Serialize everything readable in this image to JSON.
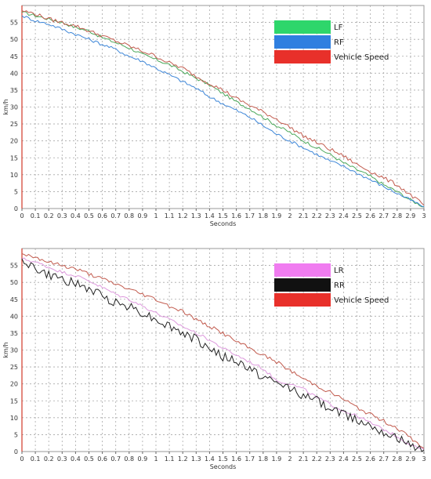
{
  "chart_data": [
    {
      "type": "line",
      "xlabel": "Seconds",
      "ylabel": "km/h",
      "xlim": [
        0,
        3.0
      ],
      "ylim": [
        0,
        60
      ],
      "x_ticks": [
        "0",
        "0.1",
        "0.2",
        "0.3",
        "0.4",
        "0.5",
        "0.6",
        "0.7",
        "0.8",
        "0.9",
        "1",
        "1.1",
        "1.2",
        "1.3",
        "1.4",
        "1.5",
        "1.6",
        "1.7",
        "1.8",
        "1.9",
        "2",
        "2.1",
        "2.2",
        "2.3",
        "2.4",
        "2.5",
        "2.6",
        "2.7",
        "2.8",
        "2.9",
        "3"
      ],
      "y_ticks": [
        "0",
        "5",
        "10",
        "15",
        "20",
        "25",
        "30",
        "35",
        "40",
        "45",
        "50",
        "55"
      ],
      "grid": true,
      "legend_position": "top-right",
      "legend": [
        {
          "name": "LF",
          "color": "#2ed66b"
        },
        {
          "name": "RF",
          "color": "#2f7fe0"
        },
        {
          "name": "Vehicle Speed",
          "color": "#e8302a"
        }
      ],
      "series": [
        {
          "name": "LF",
          "color": "#4ba85a",
          "x": [
            0,
            0.1,
            0.2,
            0.3,
            0.4,
            0.5,
            0.6,
            0.7,
            0.8,
            0.9,
            1.0,
            1.1,
            1.2,
            1.3,
            1.4,
            1.5,
            1.6,
            1.7,
            1.8,
            1.9,
            2.0,
            2.1,
            2.2,
            2.3,
            2.4,
            2.5,
            2.6,
            2.7,
            2.8,
            2.9,
            3.0
          ],
          "values": [
            58,
            57,
            56,
            55,
            53.5,
            52.5,
            50.5,
            49,
            47.5,
            45.5,
            44,
            42.5,
            40.5,
            38.5,
            36.5,
            34,
            31.5,
            29.5,
            27,
            24.5,
            22.5,
            20,
            18,
            16,
            13.5,
            11.5,
            9.5,
            7,
            5,
            2.5,
            0.5
          ]
        },
        {
          "name": "RF",
          "color": "#3d86d8",
          "x": [
            0,
            0.1,
            0.2,
            0.3,
            0.4,
            0.5,
            0.6,
            0.7,
            0.8,
            0.9,
            1.0,
            1.1,
            1.2,
            1.3,
            1.4,
            1.5,
            1.6,
            1.7,
            1.8,
            1.9,
            2.0,
            2.1,
            2.2,
            2.3,
            2.4,
            2.5,
            2.6,
            2.7,
            2.8,
            2.9,
            3.0
          ],
          "values": [
            57,
            55.5,
            54.5,
            53,
            51.5,
            50,
            48.5,
            47,
            45,
            43.5,
            41.5,
            39.5,
            37.5,
            35.5,
            33,
            31,
            29,
            27,
            24.5,
            22,
            20,
            18,
            16,
            14,
            12.5,
            10.5,
            8.5,
            6.5,
            4.5,
            2.5,
            0.5
          ]
        },
        {
          "name": "Vehicle Speed",
          "color": "#c25b4e",
          "x": [
            0,
            0.1,
            0.2,
            0.3,
            0.4,
            0.5,
            0.6,
            0.7,
            0.8,
            0.9,
            1.0,
            1.1,
            1.2,
            1.3,
            1.4,
            1.5,
            1.6,
            1.7,
            1.8,
            1.9,
            2.0,
            2.1,
            2.2,
            2.3,
            2.4,
            2.5,
            2.6,
            2.7,
            2.8,
            2.9,
            3.0
          ],
          "values": [
            58.5,
            57.5,
            56,
            55,
            54,
            52.5,
            51,
            49.5,
            48,
            46.5,
            45,
            43,
            41.5,
            39,
            37,
            35,
            32.5,
            30.5,
            28.5,
            26.5,
            24,
            21.5,
            19.5,
            17.5,
            15.5,
            13,
            11,
            9,
            7,
            4,
            1
          ]
        }
      ]
    },
    {
      "type": "line",
      "xlabel": "Seconds",
      "ylabel": "km/h",
      "xlim": [
        0,
        3.0
      ],
      "ylim": [
        0,
        60
      ],
      "x_ticks": [
        "0",
        "0.1",
        "0.2",
        "0.3",
        "0.4",
        "0.5",
        "0.6",
        "0.7",
        "0.8",
        "0.9",
        "1",
        "1.1",
        "1.2",
        "1.3",
        "1.4",
        "1.5",
        "1.6",
        "1.7",
        "1.8",
        "1.9",
        "2",
        "2.1",
        "2.2",
        "2.3",
        "2.4",
        "2.5",
        "2.6",
        "2.7",
        "2.8",
        "2.9",
        "3"
      ],
      "y_ticks": [
        "0",
        "5",
        "10",
        "15",
        "20",
        "25",
        "30",
        "35",
        "40",
        "45",
        "50",
        "55"
      ],
      "grid": true,
      "legend_position": "top-right",
      "legend": [
        {
          "name": "LR",
          "color": "#f07cf0"
        },
        {
          "name": "RR",
          "color": "#111111"
        },
        {
          "name": "Vehicle Speed",
          "color": "#e8302a"
        }
      ],
      "series": [
        {
          "name": "LR",
          "color": "#dd99dd",
          "x": [
            0,
            0.1,
            0.2,
            0.3,
            0.4,
            0.5,
            0.6,
            0.7,
            0.8,
            0.9,
            1.0,
            1.1,
            1.2,
            1.3,
            1.4,
            1.5,
            1.6,
            1.7,
            1.8,
            1.9,
            2.0,
            2.1,
            2.2,
            2.3,
            2.4,
            2.5,
            2.6,
            2.7,
            2.8,
            2.9,
            3.0
          ],
          "values": [
            57,
            56,
            54.5,
            53,
            52,
            50.5,
            48.5,
            46.5,
            45,
            43,
            41,
            39,
            37,
            35,
            33,
            30.5,
            28.5,
            26.5,
            24.5,
            21,
            20,
            18.5,
            16,
            14,
            12,
            10.5,
            8.5,
            6.5,
            4.5,
            2,
            0.5
          ]
        },
        {
          "name": "RR",
          "color": "#222222",
          "x": [
            0,
            0.1,
            0.2,
            0.3,
            0.4,
            0.5,
            0.6,
            0.7,
            0.8,
            0.9,
            1.0,
            1.1,
            1.2,
            1.3,
            1.4,
            1.5,
            1.6,
            1.7,
            1.8,
            1.9,
            2.0,
            2.1,
            2.2,
            2.3,
            2.4,
            2.5,
            2.6,
            2.7,
            2.8,
            2.9,
            3.0
          ],
          "values": [
            57,
            54,
            52,
            51,
            49.5,
            48,
            46,
            44,
            43,
            41,
            39,
            37,
            35,
            33,
            30.5,
            28,
            26.5,
            24.5,
            22,
            20,
            19,
            16.5,
            15,
            13,
            11,
            9.5,
            8,
            6,
            4,
            1.5,
            0.5
          ]
        },
        {
          "name": "Vehicle Speed",
          "color": "#c25b4e",
          "x": [
            0,
            0.1,
            0.2,
            0.3,
            0.4,
            0.5,
            0.6,
            0.7,
            0.8,
            0.9,
            1.0,
            1.1,
            1.2,
            1.3,
            1.4,
            1.5,
            1.6,
            1.7,
            1.8,
            1.9,
            2.0,
            2.1,
            2.2,
            2.3,
            2.4,
            2.5,
            2.6,
            2.7,
            2.8,
            2.9,
            3.0
          ],
          "values": [
            58.5,
            57.5,
            56,
            55,
            54,
            52.5,
            51,
            49.5,
            48,
            46.5,
            45,
            43,
            41.5,
            39,
            37,
            35,
            32.5,
            30.5,
            28.5,
            26.5,
            24,
            21.5,
            19.5,
            17.5,
            15.5,
            13,
            11,
            9,
            7,
            4,
            1
          ]
        }
      ]
    }
  ]
}
